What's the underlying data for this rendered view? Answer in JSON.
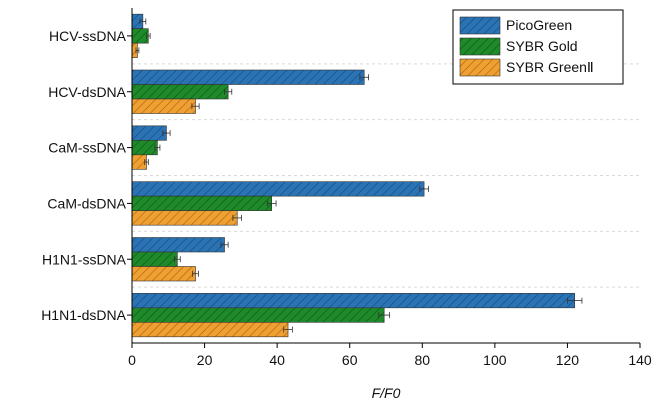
{
  "chart_data": {
    "type": "bar",
    "orientation": "horizontal",
    "title": "",
    "xlabel": "F/F0",
    "ylabel": "",
    "xlim": [
      0,
      140
    ],
    "xticks": [
      0,
      20,
      40,
      60,
      80,
      100,
      120,
      140
    ],
    "grid": "dashed-horizontal",
    "legend_position": "top-right",
    "categories": [
      "HCV-ssDNA",
      "HCV-dsDNA",
      "CaM-ssDNA",
      "CaM-dsDNA",
      "H1N1-ssDNA",
      "H1N1-dsDNA"
    ],
    "series": [
      {
        "name": "PicoGreen",
        "color": "#2a73b5",
        "hatch": "#17497a",
        "values": [
          3,
          64,
          9.5,
          80.5,
          25.5,
          122
        ],
        "errors": [
          0.8,
          1.2,
          1.0,
          1.2,
          1.0,
          2.0
        ]
      },
      {
        "name": "SYBR Gold",
        "color": "#1f8a2a",
        "hatch": "#0f5216",
        "values": [
          4.5,
          26.5,
          7,
          38.5,
          12.5,
          69.5
        ],
        "errors": [
          0.5,
          1.0,
          0.7,
          1.2,
          0.8,
          1.5
        ]
      },
      {
        "name": "SYBR GreenⅡ",
        "color": "#f0a030",
        "hatch": "#a0621a",
        "values": [
          1.5,
          17.5,
          4,
          29,
          17.5,
          43
        ],
        "errors": [
          0.4,
          1.0,
          0.5,
          1.2,
          0.8,
          1.2
        ]
      }
    ]
  }
}
